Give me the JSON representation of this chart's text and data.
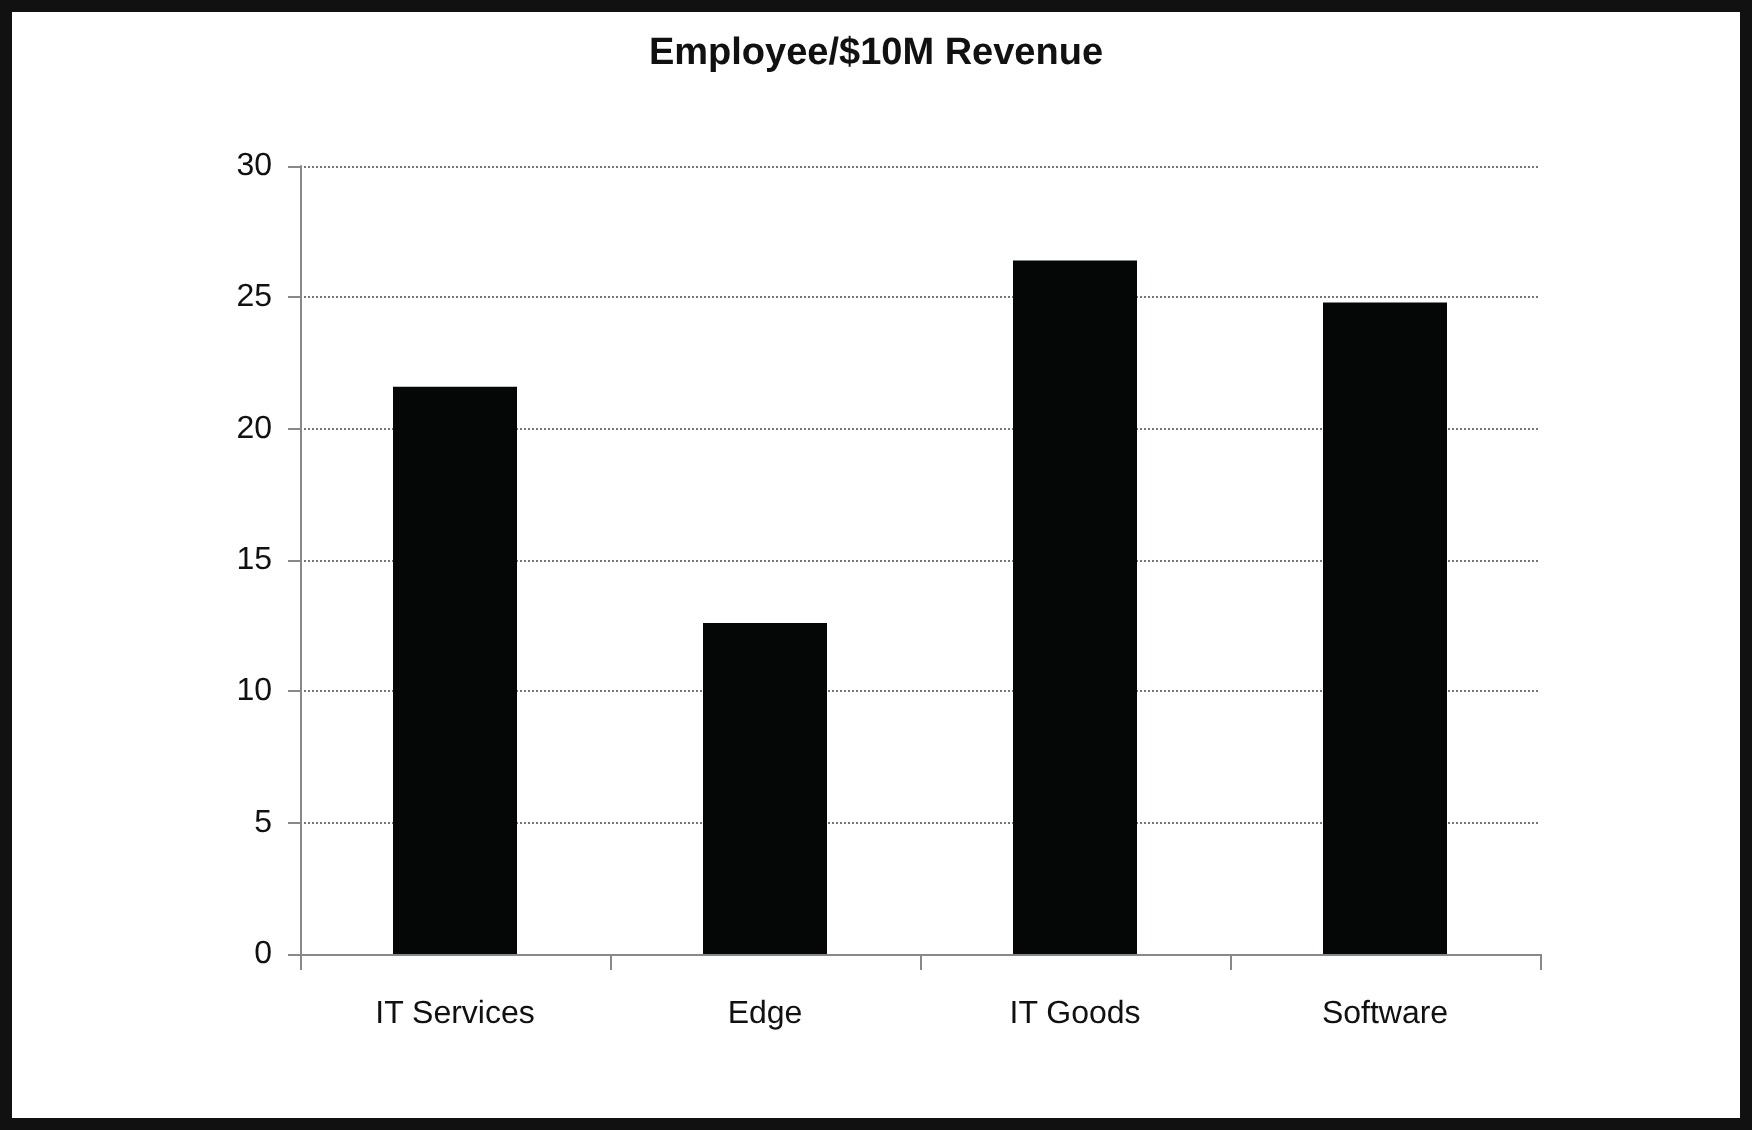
{
  "chart_data": {
    "type": "bar",
    "title": "Employee/$10M Revenue",
    "categories": [
      "IT Services",
      "Edge",
      "IT Goods",
      "Software"
    ],
    "values": [
      21.6,
      12.6,
      26.4,
      24.8
    ],
    "color": "#050706",
    "ylim": [
      0,
      30
    ],
    "yticks": [
      0,
      5,
      10,
      15,
      20,
      25,
      30
    ],
    "grid": "y"
  }
}
